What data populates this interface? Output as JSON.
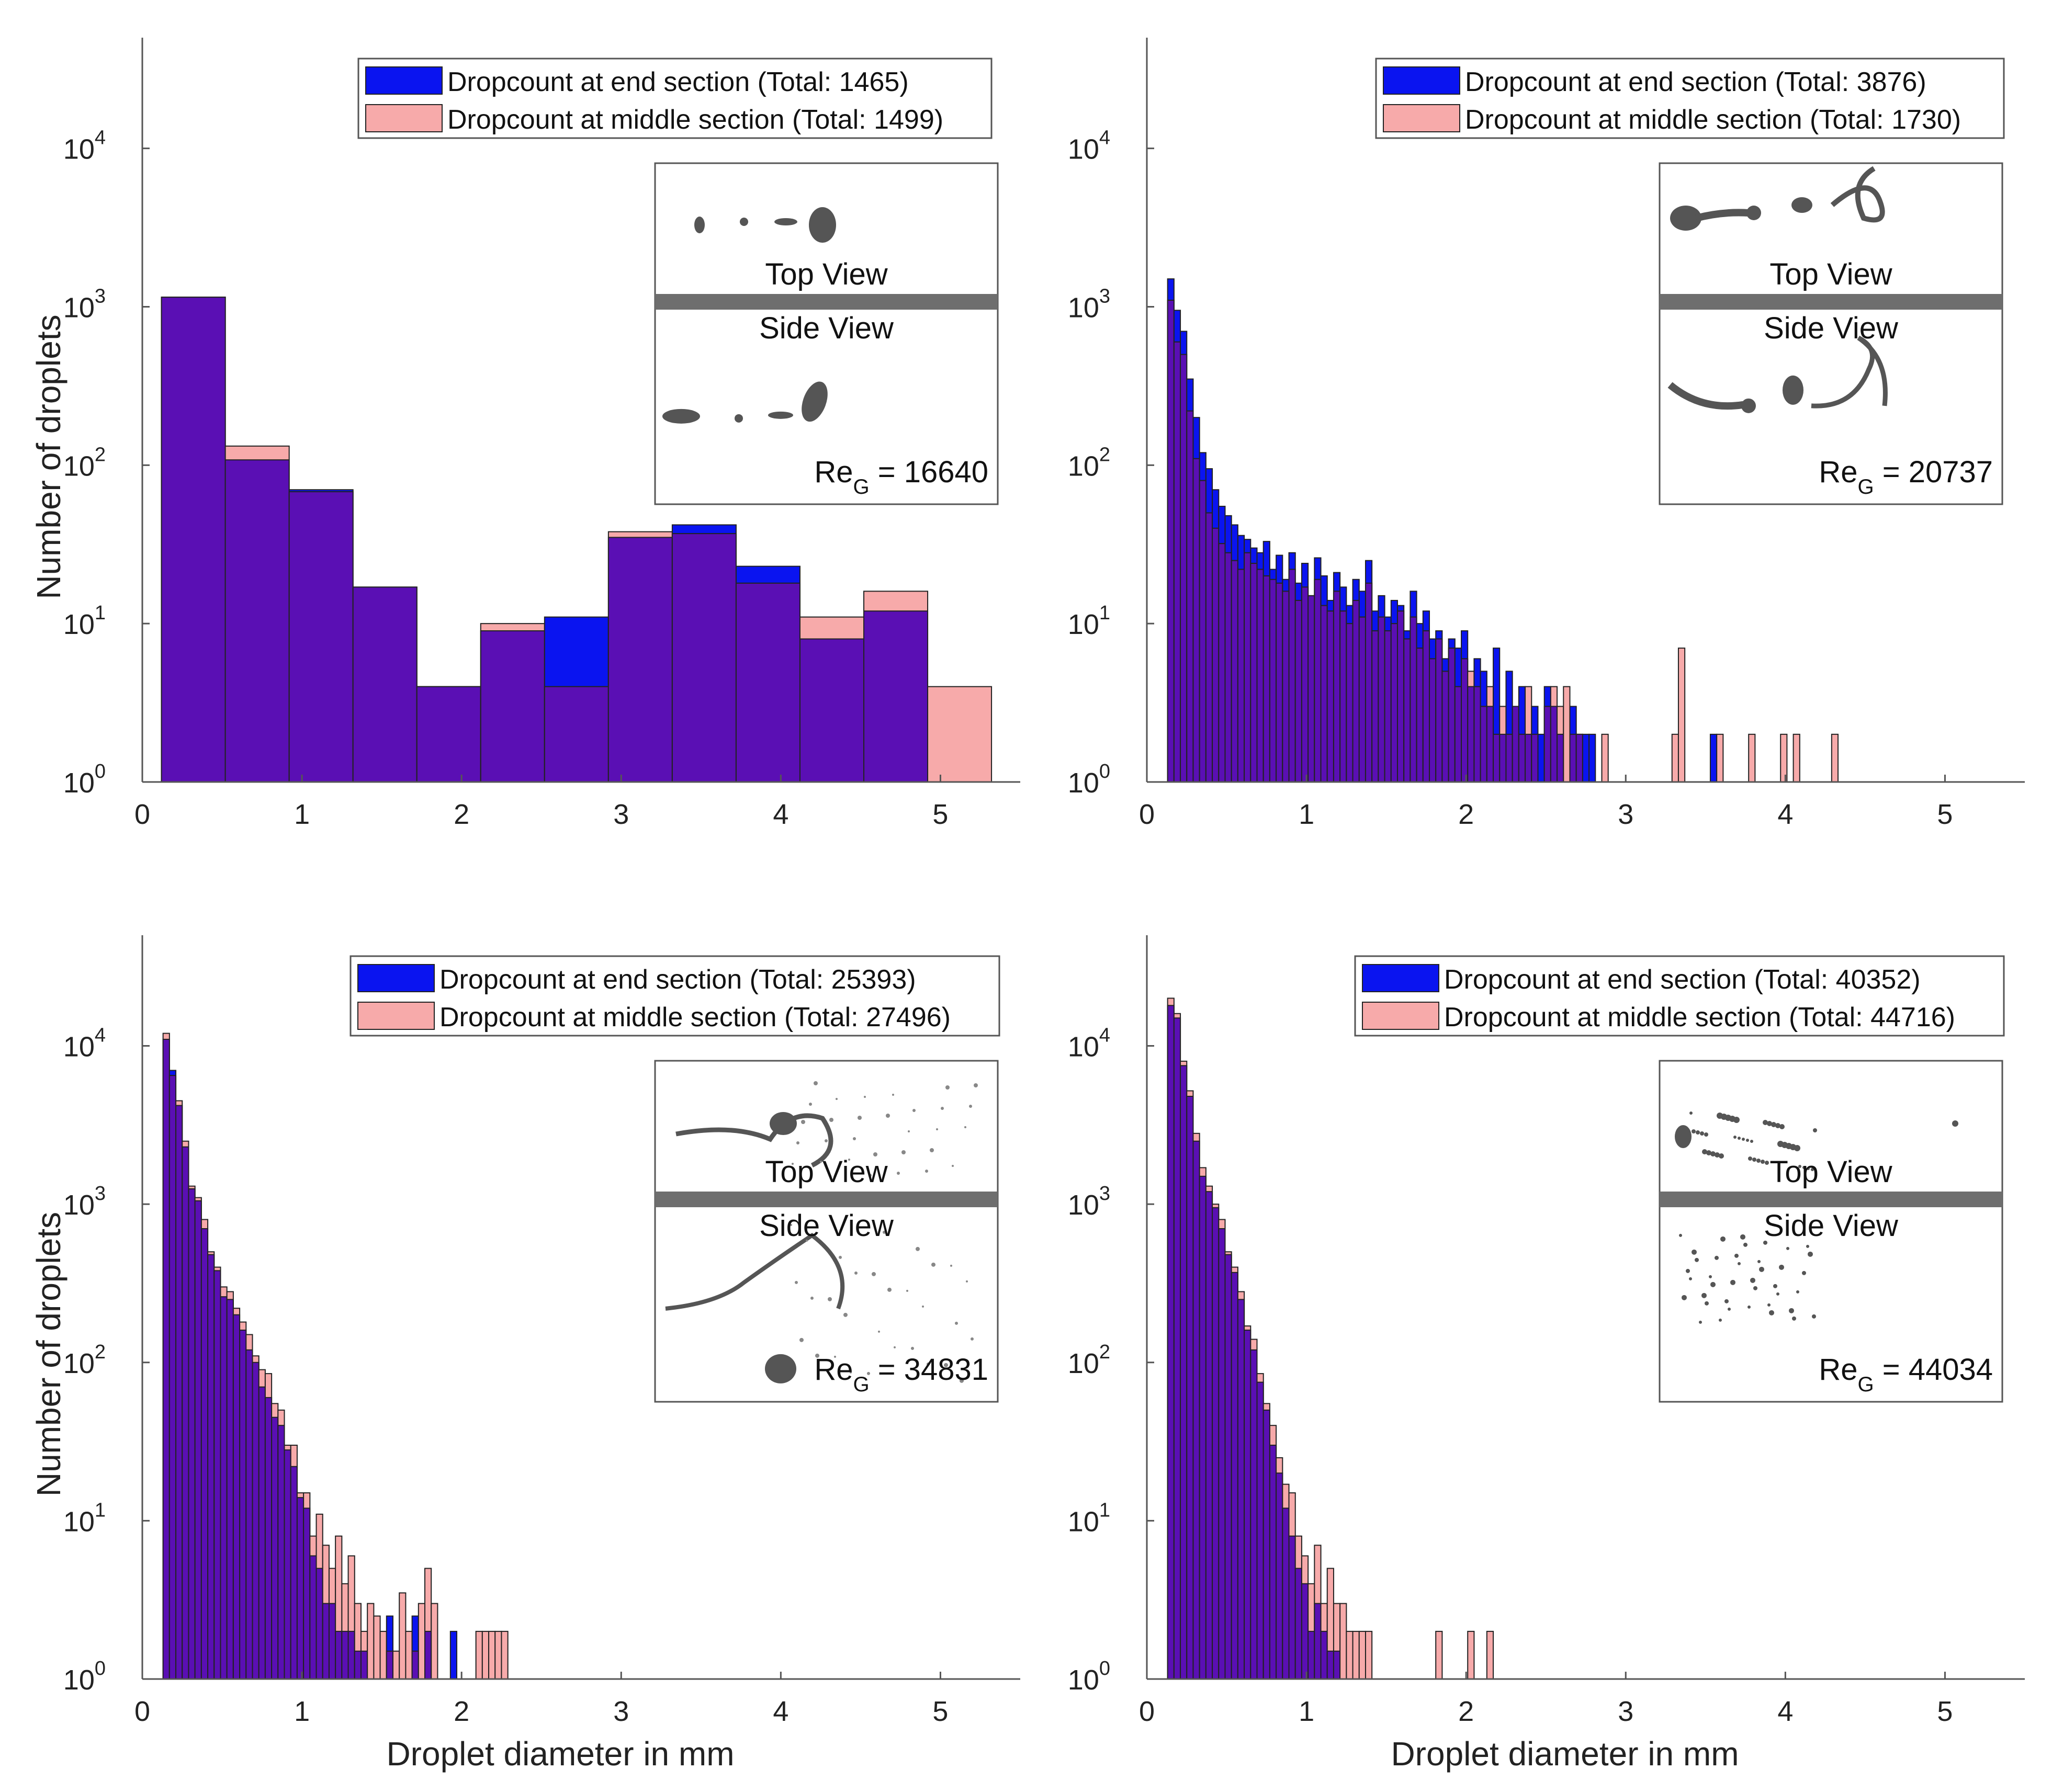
{
  "colors": {
    "end_section": "#0a14f0",
    "middle_section": "#f7aaaa",
    "overlap": "#5a0fb4",
    "axis": "#555555",
    "inset_bar": "#6e6e6e"
  },
  "chart_data": [
    {
      "type": "bar",
      "panel": "top-left",
      "scale": "log-y",
      "xlabel": "",
      "ylabel": "Number of droplets",
      "xlim": [
        0,
        5.5
      ],
      "ylim": [
        1,
        50000
      ],
      "x_ticks": [
        "0",
        "1",
        "2",
        "3",
        "4",
        "5"
      ],
      "y_ticks": [
        "10",
        "10",
        "10",
        "10",
        "10"
      ],
      "y_tick_exponents": [
        "0",
        "1",
        "2",
        "3",
        "4"
      ],
      "legend": {
        "placement": "top-right",
        "end_label": "Dropcount at end section (Total: 1465)",
        "middle_label": "Dropcount at middle section (Total: 1499)"
      },
      "inset": {
        "top_label": "Top View",
        "side_label": "Side View",
        "re_prefix": "Re",
        "re_subscript": "G",
        "re_value": "= 16640",
        "style": "few"
      },
      "bin_width": 0.4,
      "x": [
        0.32,
        0.72,
        1.12,
        1.52,
        1.92,
        2.32,
        2.72,
        3.12,
        3.52,
        3.92,
        4.32,
        4.72,
        5.12
      ],
      "series": [
        {
          "name": "Dropcount at end section",
          "values": [
            1150,
            108,
            70,
            17,
            4,
            9,
            11,
            35,
            42,
            23,
            8,
            12,
            0
          ]
        },
        {
          "name": "Dropcount at middle section",
          "values": [
            1150,
            132,
            68,
            17,
            4,
            10,
            4,
            38,
            37,
            18,
            11,
            16,
            4
          ]
        }
      ]
    },
    {
      "type": "bar",
      "panel": "top-right",
      "scale": "log-y",
      "xlabel": "",
      "ylabel": "",
      "xlim": [
        0,
        5.5
      ],
      "ylim": [
        1,
        50000
      ],
      "x_ticks": [
        "0",
        "1",
        "2",
        "3",
        "4",
        "5"
      ],
      "y_ticks": [
        "10",
        "10",
        "10",
        "10",
        "10"
      ],
      "y_tick_exponents": [
        "0",
        "1",
        "2",
        "3",
        "4"
      ],
      "legend": {
        "placement": "top-right",
        "end_label": "Dropcount at end section (Total: 3876)",
        "middle_label": "Dropcount at middle section (Total: 1730)"
      },
      "inset": {
        "top_label": "Top View",
        "side_label": "Side View",
        "re_prefix": "Re",
        "re_subscript": "G",
        "re_value": "= 20737",
        "style": "ligament"
      },
      "bin_width": 0.04,
      "x": [
        0.15,
        0.19,
        0.23,
        0.27,
        0.31,
        0.35,
        0.39,
        0.43,
        0.47,
        0.51,
        0.55,
        0.59,
        0.63,
        0.67,
        0.71,
        0.75,
        0.79,
        0.83,
        0.87,
        0.91,
        0.95,
        0.99,
        1.03,
        1.07,
        1.11,
        1.15,
        1.19,
        1.23,
        1.27,
        1.31,
        1.35,
        1.39,
        1.43,
        1.47,
        1.51,
        1.55,
        1.59,
        1.63,
        1.67,
        1.71,
        1.75,
        1.79,
        1.83,
        1.87,
        1.91,
        1.95,
        1.99,
        2.03,
        2.07,
        2.11,
        2.15,
        2.19,
        2.23,
        2.27,
        2.31,
        2.35,
        2.39,
        2.43,
        2.47,
        2.51,
        2.55,
        2.59,
        2.63,
        2.67,
        2.71,
        2.75,
        2.79,
        2.83,
        2.87,
        2.91,
        2.95,
        2.99,
        3.03,
        3.07,
        3.11,
        3.15,
        3.19,
        3.23,
        3.27,
        3.31,
        3.35,
        3.39,
        3.43,
        3.47,
        3.51,
        3.55,
        3.59,
        3.63,
        3.67,
        3.71,
        3.75,
        3.79,
        3.83,
        3.87,
        3.91,
        3.95,
        3.99,
        4.03,
        4.07,
        4.11,
        4.15,
        4.19,
        4.23,
        4.27,
        4.31
      ],
      "series": [
        {
          "name": "Dropcount at end section",
          "values": [
            1500,
            950,
            700,
            350,
            200,
            120,
            95,
            70,
            55,
            48,
            42,
            36,
            34,
            30,
            28,
            33,
            22,
            27,
            19,
            28,
            18,
            24,
            15,
            26,
            20,
            14,
            21,
            17,
            13,
            19,
            16,
            25,
            12,
            15,
            11,
            14,
            13,
            9,
            16,
            10,
            12,
            8,
            9,
            6,
            8,
            7,
            9,
            4,
            6,
            5,
            3,
            7,
            2,
            5,
            3,
            4,
            2,
            3,
            2,
            4,
            3,
            2,
            0,
            3,
            2,
            2,
            2,
            0,
            0,
            0,
            0,
            0,
            0,
            0,
            0,
            0,
            0,
            0,
            0,
            0,
            0,
            0,
            0,
            0,
            0,
            2,
            0,
            0,
            0,
            0,
            0,
            0,
            0,
            0,
            0,
            0,
            0,
            0,
            0,
            0,
            0,
            0,
            0,
            0,
            0
          ]
        },
        {
          "name": "Dropcount at middle section",
          "values": [
            1100,
            600,
            500,
            220,
            110,
            80,
            50,
            40,
            32,
            28,
            25,
            22,
            28,
            24,
            22,
            20,
            19,
            18,
            16,
            22,
            14,
            17,
            15,
            19,
            13,
            12,
            16,
            12,
            10,
            14,
            11,
            18,
            9,
            11,
            9,
            10,
            12,
            8,
            11,
            7,
            9,
            6,
            8,
            5,
            7,
            4,
            6,
            5,
            4,
            3,
            4,
            2,
            3,
            2,
            3,
            2,
            4,
            2,
            0,
            3,
            4,
            3,
            4,
            2,
            2,
            0,
            0,
            0,
            2,
            0,
            0,
            0,
            0,
            0,
            0,
            0,
            0,
            0,
            0,
            2,
            7,
            0,
            0,
            0,
            0,
            0,
            2,
            0,
            0,
            0,
            0,
            2,
            0,
            0,
            0,
            0,
            2,
            0,
            2,
            0,
            0,
            0,
            0,
            0,
            2
          ]
        }
      ]
    },
    {
      "type": "bar",
      "panel": "bottom-left",
      "scale": "log-y",
      "xlabel": "Droplet diameter in mm",
      "ylabel": "Number of droplets",
      "xlim": [
        0,
        5.5
      ],
      "ylim": [
        1,
        50000
      ],
      "x_ticks": [
        "0",
        "1",
        "2",
        "3",
        "4",
        "5"
      ],
      "y_ticks": [
        "10",
        "10",
        "10",
        "10",
        "10"
      ],
      "y_tick_exponents": [
        "0",
        "1",
        "2",
        "3",
        "4"
      ],
      "legend": {
        "placement": "top-right",
        "end_label": "Dropcount at end section (Total: 25393)",
        "middle_label": "Dropcount at middle section (Total: 27496)"
      },
      "inset": {
        "top_label": "Top View",
        "side_label": "Side View",
        "re_prefix": "Re",
        "re_subscript": "G",
        "re_value": "= 34831",
        "style": "spray"
      },
      "bin_width": 0.04,
      "x": [
        0.15,
        0.19,
        0.23,
        0.27,
        0.31,
        0.35,
        0.39,
        0.43,
        0.47,
        0.51,
        0.55,
        0.59,
        0.63,
        0.67,
        0.71,
        0.75,
        0.79,
        0.83,
        0.87,
        0.91,
        0.95,
        0.99,
        1.03,
        1.07,
        1.11,
        1.15,
        1.19,
        1.23,
        1.27,
        1.31,
        1.35,
        1.39,
        1.43,
        1.47,
        1.51,
        1.55,
        1.59,
        1.63,
        1.67,
        1.71,
        1.75,
        1.79,
        1.83,
        1.87,
        1.91,
        1.95,
        1.99,
        2.03,
        2.07,
        2.11,
        2.15,
        2.19,
        2.23,
        2.27
      ],
      "series": [
        {
          "name": "Dropcount at end section",
          "values": [
            11000,
            7000,
            4200,
            2300,
            1250,
            1050,
            700,
            480,
            380,
            260,
            250,
            200,
            160,
            120,
            100,
            70,
            60,
            45,
            40,
            28,
            22,
            14,
            12,
            6,
            5,
            3,
            3,
            2,
            2,
            2,
            1.5,
            1.5,
            1,
            1,
            1,
            2.5,
            0,
            0,
            0,
            2.5,
            0,
            2,
            0,
            0,
            0,
            2,
            0,
            0,
            0,
            0,
            0,
            0,
            0,
            0
          ]
        },
        {
          "name": "Dropcount at middle section",
          "values": [
            12000,
            6500,
            4500,
            2500,
            1300,
            1100,
            800,
            500,
            400,
            300,
            280,
            220,
            180,
            150,
            110,
            90,
            85,
            55,
            50,
            30,
            30,
            15,
            15,
            8,
            11,
            7,
            5,
            8,
            4,
            6,
            3,
            2,
            3,
            2.5,
            2,
            1.5,
            1.5,
            3.5,
            2,
            1.5,
            3,
            5,
            3,
            0,
            0,
            0,
            0,
            0,
            0,
            2,
            2,
            2,
            2,
            2
          ]
        }
      ]
    },
    {
      "type": "bar",
      "panel": "bottom-right",
      "scale": "log-y",
      "xlabel": "Droplet diameter in mm",
      "ylabel": "",
      "xlim": [
        0,
        5.5
      ],
      "ylim": [
        1,
        50000
      ],
      "x_ticks": [
        "0",
        "1",
        "2",
        "3",
        "4",
        "5"
      ],
      "y_ticks": [
        "10",
        "10",
        "10",
        "10",
        "10"
      ],
      "y_tick_exponents": [
        "0",
        "1",
        "2",
        "3",
        "4"
      ],
      "legend": {
        "placement": "top-right",
        "end_label": "Dropcount at end section (Total: 40352)",
        "middle_label": "Dropcount at middle section (Total: 44716)"
      },
      "inset": {
        "top_label": "Top View",
        "side_label": "Side View",
        "re_prefix": "Re",
        "re_subscript": "G",
        "re_value": "= 44034",
        "style": "dots"
      },
      "bin_width": 0.04,
      "x": [
        0.15,
        0.19,
        0.23,
        0.27,
        0.31,
        0.35,
        0.39,
        0.43,
        0.47,
        0.51,
        0.55,
        0.59,
        0.63,
        0.67,
        0.71,
        0.75,
        0.79,
        0.83,
        0.87,
        0.91,
        0.95,
        0.99,
        1.03,
        1.07,
        1.11,
        1.15,
        1.19,
        1.23,
        1.27,
        1.31,
        1.35,
        1.39,
        1.43,
        1.47,
        1.51,
        1.55,
        1.59,
        1.63,
        1.67,
        1.71,
        1.75,
        1.79,
        1.83,
        1.87,
        1.91,
        1.95,
        1.99,
        2.03,
        2.07,
        2.11,
        2.15
      ],
      "series": [
        {
          "name": "Dropcount at end section",
          "values": [
            18000,
            15000,
            7500,
            4800,
            2500,
            1500,
            1200,
            950,
            700,
            480,
            370,
            250,
            160,
            120,
            75,
            50,
            30,
            20,
            12,
            8,
            5,
            4,
            2,
            3,
            2,
            1.5,
            1.5,
            1,
            0,
            0,
            0,
            0,
            0,
            0,
            0,
            0,
            0,
            0,
            0,
            0,
            0,
            0,
            0,
            0,
            0,
            0,
            0,
            0,
            0,
            0,
            0
          ]
        },
        {
          "name": "Dropcount at middle section",
          "values": [
            20000,
            16000,
            8000,
            5200,
            2800,
            1700,
            1300,
            1000,
            800,
            500,
            400,
            280,
            170,
            140,
            85,
            55,
            40,
            25,
            17,
            15,
            8,
            6,
            4,
            7,
            3,
            5,
            3,
            3,
            2,
            2,
            2,
            2,
            0,
            0,
            0,
            0,
            0,
            0,
            0,
            0,
            0,
            0,
            2,
            0,
            0,
            0,
            0,
            2,
            0,
            0,
            2
          ]
        }
      ]
    }
  ]
}
